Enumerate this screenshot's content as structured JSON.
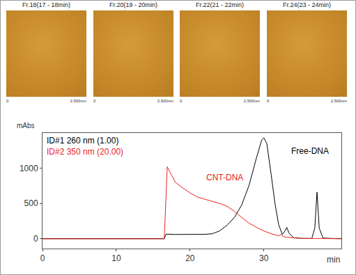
{
  "chart_data": {
    "type": "line",
    "xlabel": "min",
    "ylabel": "mAbs",
    "xlim": [
      0,
      40.5
    ],
    "ylim": [
      -140,
      1500
    ],
    "xticks": [
      0,
      10,
      20,
      30
    ],
    "yticks": [
      0,
      500,
      1000
    ],
    "grid": false,
    "legend": "upper left",
    "series": [
      {
        "name": "ID#1 260 nm (1.00)",
        "color": "#000000",
        "x": [
          0,
          16.5,
          16.7,
          16.9,
          18,
          20,
          22,
          23,
          24,
          25,
          26,
          27,
          28,
          29,
          29.7,
          30,
          30.4,
          31,
          31.5,
          32,
          32.5,
          32.8,
          33.1,
          33.4,
          34,
          35,
          36.5,
          36.9,
          37.2,
          37.5,
          38,
          39,
          40.5
        ],
        "values": [
          0,
          0,
          60,
          65,
          60,
          60,
          62,
          70,
          110,
          190,
          300,
          480,
          760,
          1150,
          1400,
          1430,
          1350,
          900,
          500,
          200,
          60,
          100,
          160,
          80,
          15,
          5,
          5,
          150,
          660,
          150,
          10,
          5,
          0
        ]
      },
      {
        "name": "ID#2 350 nm (20.00)",
        "color": "#e8231f",
        "x": [
          0,
          16.5,
          16.7,
          16.9,
          17.5,
          18,
          19,
          20,
          21,
          22,
          23,
          24,
          25,
          26,
          27,
          28,
          29,
          30,
          31,
          32,
          32.3,
          32.6,
          33,
          34,
          35,
          37,
          40.5
        ],
        "values": [
          0,
          0,
          500,
          1020,
          900,
          800,
          720,
          650,
          590,
          560,
          530,
          500,
          460,
          390,
          300,
          220,
          160,
          110,
          70,
          40,
          60,
          35,
          20,
          10,
          5,
          3,
          0
        ]
      }
    ],
    "annotations": [
      {
        "text": "CNT-DNA",
        "x": 22,
        "y": 870,
        "color": "#e8231f"
      },
      {
        "text": "Free-DNA",
        "x": 33.5,
        "y": 1240,
        "color": "#000000"
      }
    ]
  },
  "images": [
    {
      "label": "Fr.18(17 - 18min)",
      "scale_start": "0",
      "scale_end": "2,500nm"
    },
    {
      "label": "Fr.20(19 - 20min)",
      "scale_start": "0",
      "scale_end": "2,500nm"
    },
    {
      "label": "Fr.22(21 - 22min)",
      "scale_start": "0",
      "scale_end": "2,500nm"
    },
    {
      "label": "Fr.24(23 - 24min)",
      "scale_start": "0",
      "scale_end": "2,500nm"
    }
  ]
}
